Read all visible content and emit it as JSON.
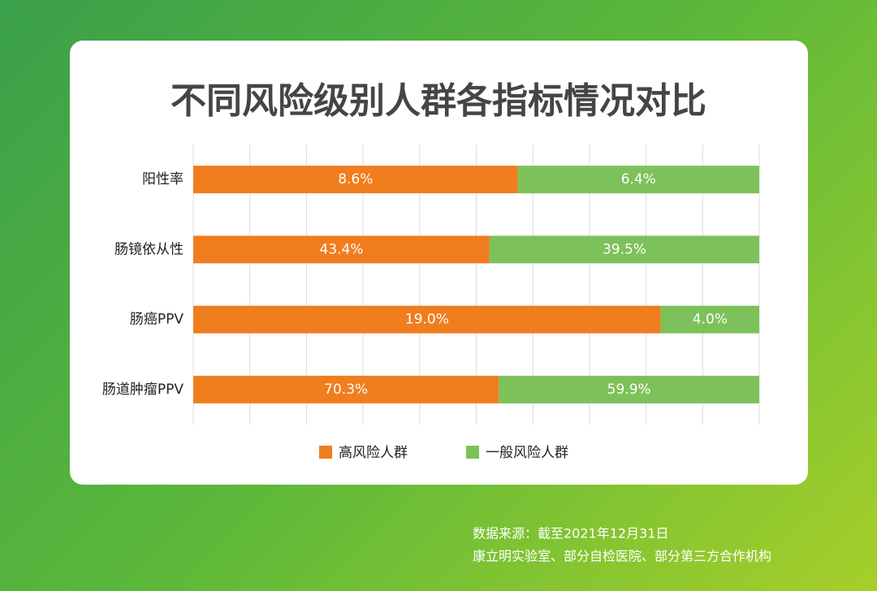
{
  "chart_data": {
    "type": "bar",
    "orientation": "horizontal",
    "stack": "percent",
    "title": "不同风险级别人群各指标情况对比",
    "categories": [
      "阳性率",
      "肠镜依从性",
      "肠癌PPV",
      "肠道肿瘤PPV"
    ],
    "series": [
      {
        "name": "高风险人群",
        "color": "#f07d1e",
        "values": [
          8.6,
          43.4,
          19.0,
          70.3
        ],
        "value_labels": [
          "8.6%",
          "43.4%",
          "19.0%",
          "70.3%"
        ]
      },
      {
        "name": "一般风险人群",
        "color": "#7dc15a",
        "values": [
          6.4,
          39.5,
          4.0,
          59.9
        ],
        "value_labels": [
          "6.4%",
          "39.5%",
          "4.0%",
          "59.9%"
        ]
      }
    ],
    "xlim": [
      0,
      100
    ],
    "xticks": [
      0,
      10,
      20,
      30,
      40,
      50,
      60,
      70,
      80,
      90,
      100
    ],
    "grid": true,
    "legend": "bottom",
    "source": [
      "数据来源：截至2021年12月31日",
      "康立明实验室、部分自检医院、部分第三方合作机构"
    ]
  }
}
